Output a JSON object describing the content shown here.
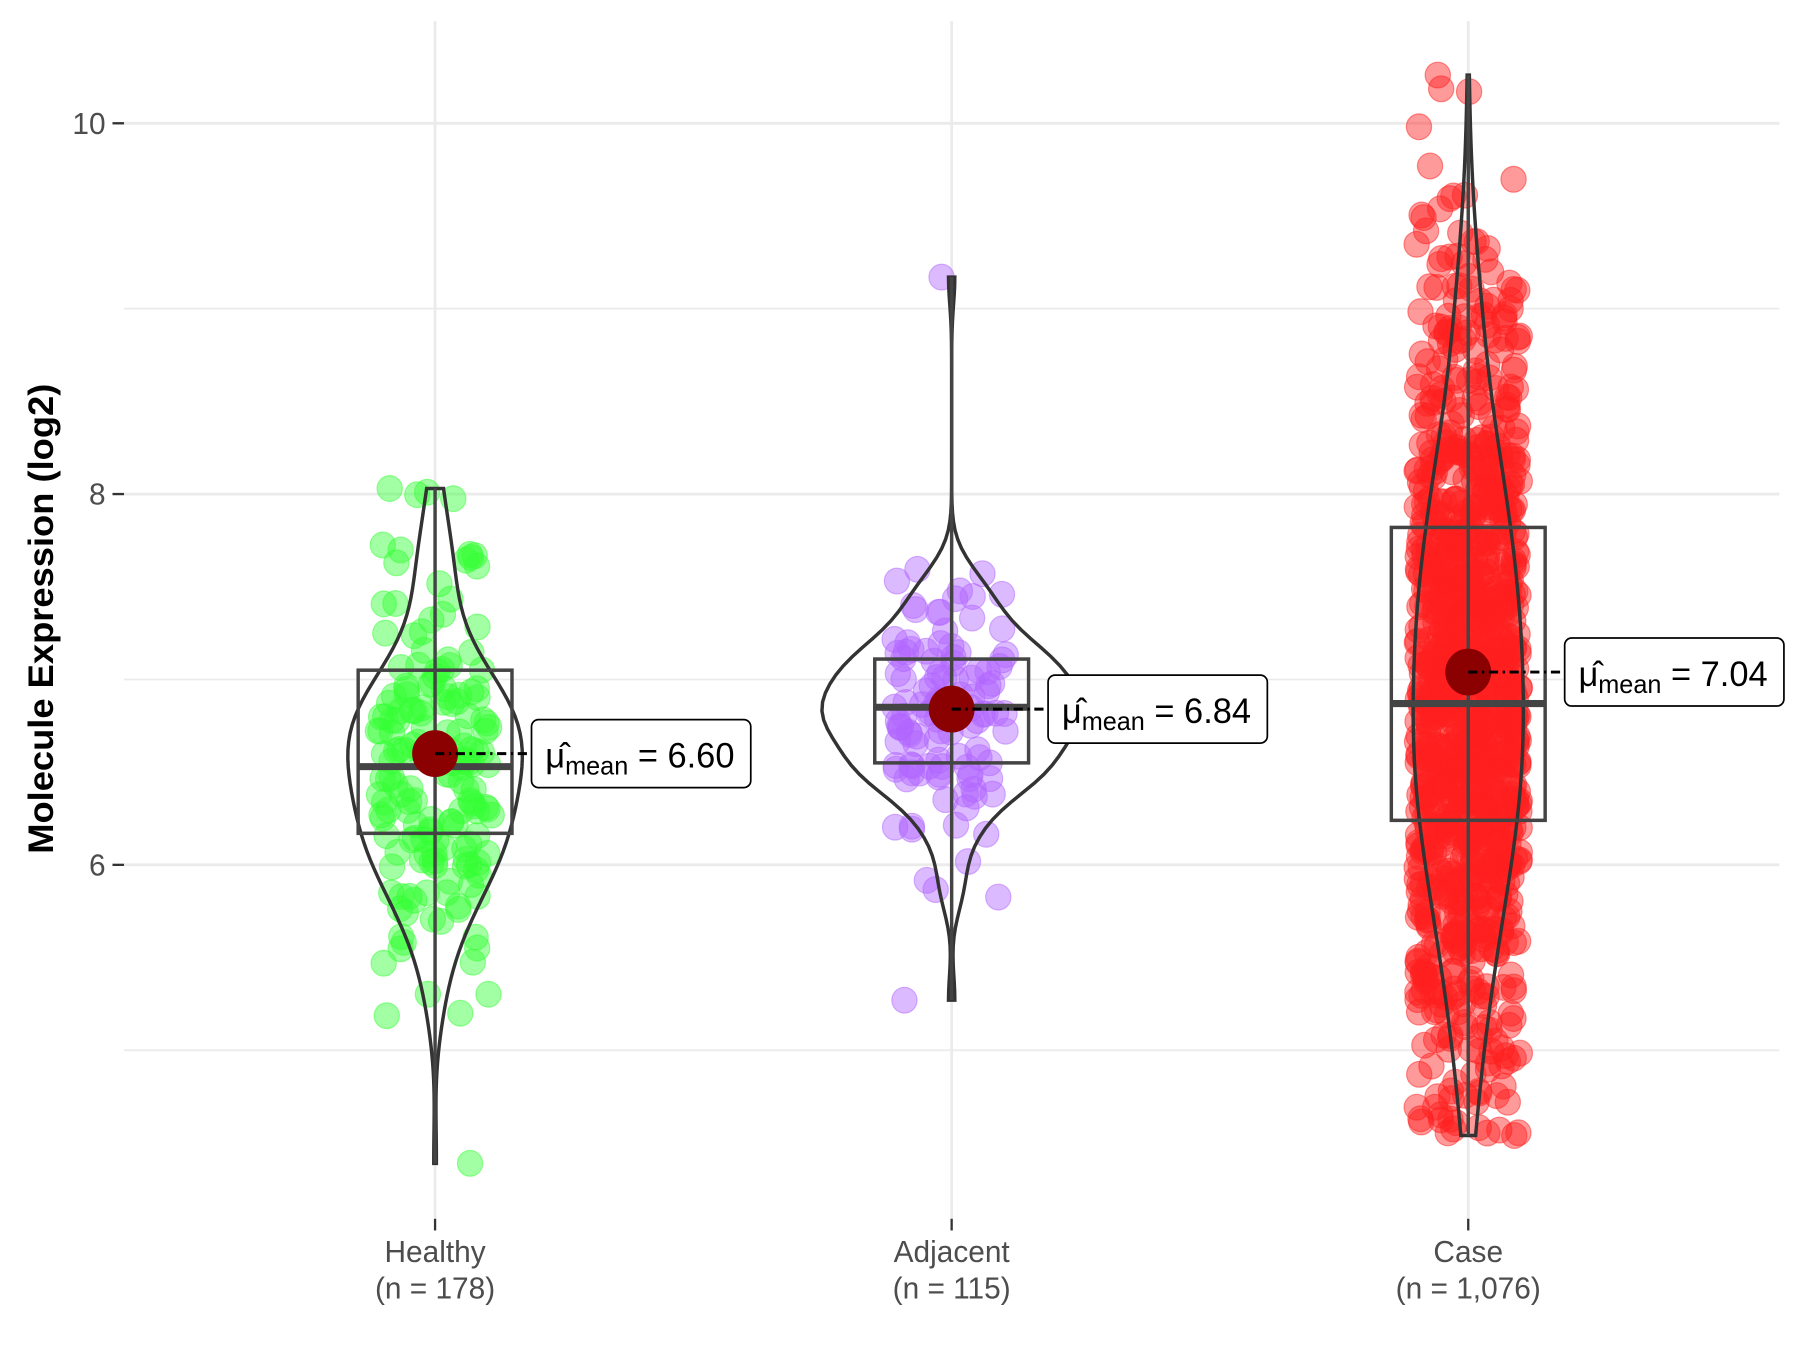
{
  "chart_data": {
    "type": "violin-box-jitter",
    "ylabel": "Molecule Expression (log2)",
    "xlabel": "",
    "ylim": [
      4.2,
      10.55
    ],
    "yticks": [
      6,
      8,
      10
    ],
    "grid": true,
    "groups": [
      {
        "label": "Healthy",
        "n_label": "(n = 178)",
        "n": 178,
        "color": "#33ff33",
        "mean": 6.6,
        "mean_label": "6.60",
        "q1": 6.17,
        "median": 6.53,
        "q3": 7.05,
        "min": 4.39,
        "max": 8.03
      },
      {
        "label": "Adjacent",
        "n_label": "(n = 115)",
        "n": 115,
        "color": "#b266ff",
        "mean": 6.84,
        "mean_label": "6.84",
        "q1": 6.55,
        "median": 6.85,
        "q3": 7.11,
        "min": 5.27,
        "max": 9.17
      },
      {
        "label": "Case",
        "n_label": "(n = 1,076)",
        "n": 1076,
        "color": "#ff2020",
        "mean": 7.04,
        "mean_label": "7.04",
        "q1": 6.24,
        "median": 6.87,
        "q3": 7.82,
        "min": 4.54,
        "max": 10.26
      }
    ],
    "mean_symbol": "μ̂",
    "mean_subscript": "mean",
    "mean_point_color": "#8b0000"
  }
}
